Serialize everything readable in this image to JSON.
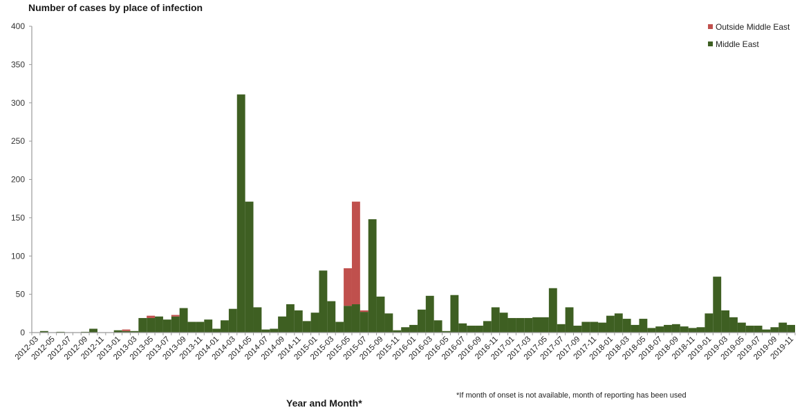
{
  "chart_data": {
    "type": "bar",
    "stacked": true,
    "title": "Number of cases by place of infection",
    "xlabel": "Year and Month*",
    "ylabel": "",
    "ylim": [
      0,
      400
    ],
    "yticks": [
      0,
      50,
      100,
      150,
      200,
      250,
      300,
      350,
      400
    ],
    "grid": false,
    "legend_position": "top-right",
    "footnote": "*If month of onset is not available, month of reporting has been used",
    "categories": [
      "2012-03",
      "2012-04",
      "2012-05",
      "2012-06",
      "2012-07",
      "2012-08",
      "2012-09",
      "2012-10",
      "2012-11",
      "2012-12",
      "2013-01",
      "2013-02",
      "2013-03",
      "2013-04",
      "2013-05",
      "2013-06",
      "2013-07",
      "2013-08",
      "2013-09",
      "2013-10",
      "2013-11",
      "2013-12",
      "2014-01",
      "2014-02",
      "2014-03",
      "2014-04",
      "2014-05",
      "2014-06",
      "2014-07",
      "2014-08",
      "2014-09",
      "2014-10",
      "2014-11",
      "2014-12",
      "2015-01",
      "2015-02",
      "2015-03",
      "2015-04",
      "2015-05",
      "2015-06",
      "2015-07",
      "2015-08",
      "2015-09",
      "2015-10",
      "2015-11",
      "2015-12",
      "2016-01",
      "2016-02",
      "2016-03",
      "2016-04",
      "2016-05",
      "2016-06",
      "2016-07",
      "2016-08",
      "2016-09",
      "2016-10",
      "2016-11",
      "2016-12",
      "2017-01",
      "2017-02",
      "2017-03",
      "2017-04",
      "2017-05",
      "2017-06",
      "2017-07",
      "2017-08",
      "2017-09",
      "2017-10",
      "2017-11",
      "2017-12",
      "2018-01",
      "2018-02",
      "2018-03",
      "2018-04",
      "2018-05",
      "2018-06",
      "2018-07",
      "2018-08",
      "2018-09",
      "2018-10",
      "2018-11",
      "2018-12",
      "2019-01",
      "2019-02",
      "2019-03",
      "2019-04",
      "2019-05",
      "2019-06",
      "2019-07",
      "2019-08",
      "2019-09",
      "2019-10",
      "2019-11"
    ],
    "tick_labels": [
      "2012-03",
      "2012-05",
      "2012-07",
      "2012-09",
      "2012-11",
      "2013-01",
      "2013-03",
      "2013-05",
      "2013-07",
      "2013-09",
      "2013-11",
      "2014-01",
      "2014-03",
      "2014-05",
      "2014-07",
      "2014-09",
      "2014-11",
      "2015-01",
      "2015-03",
      "2015-05",
      "2015-07",
      "2015-09",
      "2015-11",
      "2016-01",
      "2016-03",
      "2016-05",
      "2016-07",
      "2016-09",
      "2016-11",
      "2017-01",
      "2017-03",
      "2017-05",
      "2017-07",
      "2017-09",
      "2017-11",
      "2018-01",
      "2018-03",
      "2018-05",
      "2018-07",
      "2018-09",
      "2018-11",
      "2019-01",
      "2019-03",
      "2019-05",
      "2019-07",
      "2019-09",
      "2019-11"
    ],
    "series": [
      {
        "name": "Middle East",
        "color": "#3e5f22",
        "values": [
          0,
          2,
          0,
          1,
          0,
          0,
          1,
          5,
          0,
          0,
          3,
          2,
          2,
          19,
          19,
          21,
          17,
          21,
          32,
          14,
          14,
          17,
          5,
          16,
          31,
          311,
          171,
          33,
          4,
          5,
          21,
          37,
          29,
          15,
          26,
          81,
          41,
          14,
          35,
          37,
          27,
          148,
          47,
          25,
          3,
          7,
          10,
          30,
          48,
          16,
          2,
          49,
          12,
          9,
          9,
          15,
          33,
          26,
          19,
          19,
          19,
          20,
          20,
          58,
          11,
          33,
          9,
          14,
          14,
          13,
          22,
          25,
          18,
          10,
          18,
          6,
          8,
          10,
          11,
          8,
          6,
          7,
          25,
          73,
          29,
          20,
          13,
          9,
          9,
          4,
          7,
          13,
          10
        ]
      },
      {
        "name": "Outside Middle East",
        "color": "#c0504d",
        "values": [
          0,
          0,
          0,
          0,
          0,
          0,
          0,
          0,
          0,
          0,
          0,
          2,
          0,
          0,
          3,
          0,
          0,
          2,
          0,
          0,
          0,
          0,
          0,
          0,
          0,
          0,
          0,
          0,
          0,
          0,
          0,
          0,
          0,
          0,
          0,
          0,
          0,
          0,
          49,
          134,
          2,
          0,
          0,
          0,
          0,
          0,
          0,
          0,
          0,
          0,
          0,
          0,
          0,
          0,
          0,
          0,
          0,
          0,
          0,
          0,
          0,
          0,
          0,
          0,
          0,
          0,
          0,
          0,
          0,
          0,
          0,
          0,
          0,
          0,
          0,
          0,
          0,
          0,
          0,
          0,
          0,
          0,
          0,
          0,
          0,
          0,
          0,
          0,
          0,
          0,
          0,
          0,
          0
        ]
      }
    ]
  },
  "legend": {
    "items": [
      {
        "label": "Outside Middle East",
        "color": "#c0504d"
      },
      {
        "label": "Middle East",
        "color": "#3e5f22"
      }
    ]
  }
}
